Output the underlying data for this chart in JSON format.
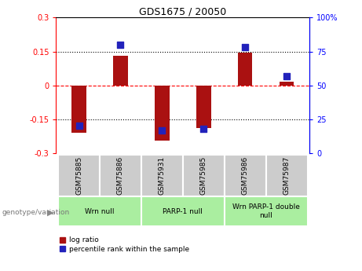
{
  "title": "GDS1675 / 20050",
  "samples": [
    "GSM75885",
    "GSM75886",
    "GSM75931",
    "GSM75985",
    "GSM75986",
    "GSM75987"
  ],
  "log_ratio": [
    -0.21,
    0.13,
    -0.245,
    -0.19,
    0.145,
    0.015
  ],
  "percentile_rank": [
    20,
    80,
    17,
    18,
    78,
    57
  ],
  "ylim_left": [
    -0.3,
    0.3
  ],
  "ylim_right": [
    0,
    100
  ],
  "yticks_left": [
    -0.3,
    -0.15,
    0,
    0.15,
    0.3
  ],
  "yticks_right": [
    0,
    25,
    50,
    75,
    100
  ],
  "ytick_labels_left": [
    "-0.3",
    "-0.15",
    "0",
    "0.15",
    "0.3"
  ],
  "ytick_labels_right": [
    "0",
    "25",
    "50",
    "75",
    "100%"
  ],
  "bar_color": "#AA1111",
  "dot_color": "#2222BB",
  "groups": [
    {
      "label": "Wrn null",
      "start": 0,
      "end": 2
    },
    {
      "label": "PARP-1 null",
      "start": 2,
      "end": 4
    },
    {
      "label": "Wrn PARP-1 double\nnull",
      "start": 4,
      "end": 6
    }
  ],
  "group_color": "#AAEEA0",
  "sample_box_color": "#CCCCCC",
  "legend_items": [
    {
      "label": "log ratio",
      "color": "#AA1111"
    },
    {
      "label": "percentile rank within the sample",
      "color": "#2222BB"
    }
  ],
  "bar_width": 0.35,
  "genotype_label": "genotype/variation"
}
